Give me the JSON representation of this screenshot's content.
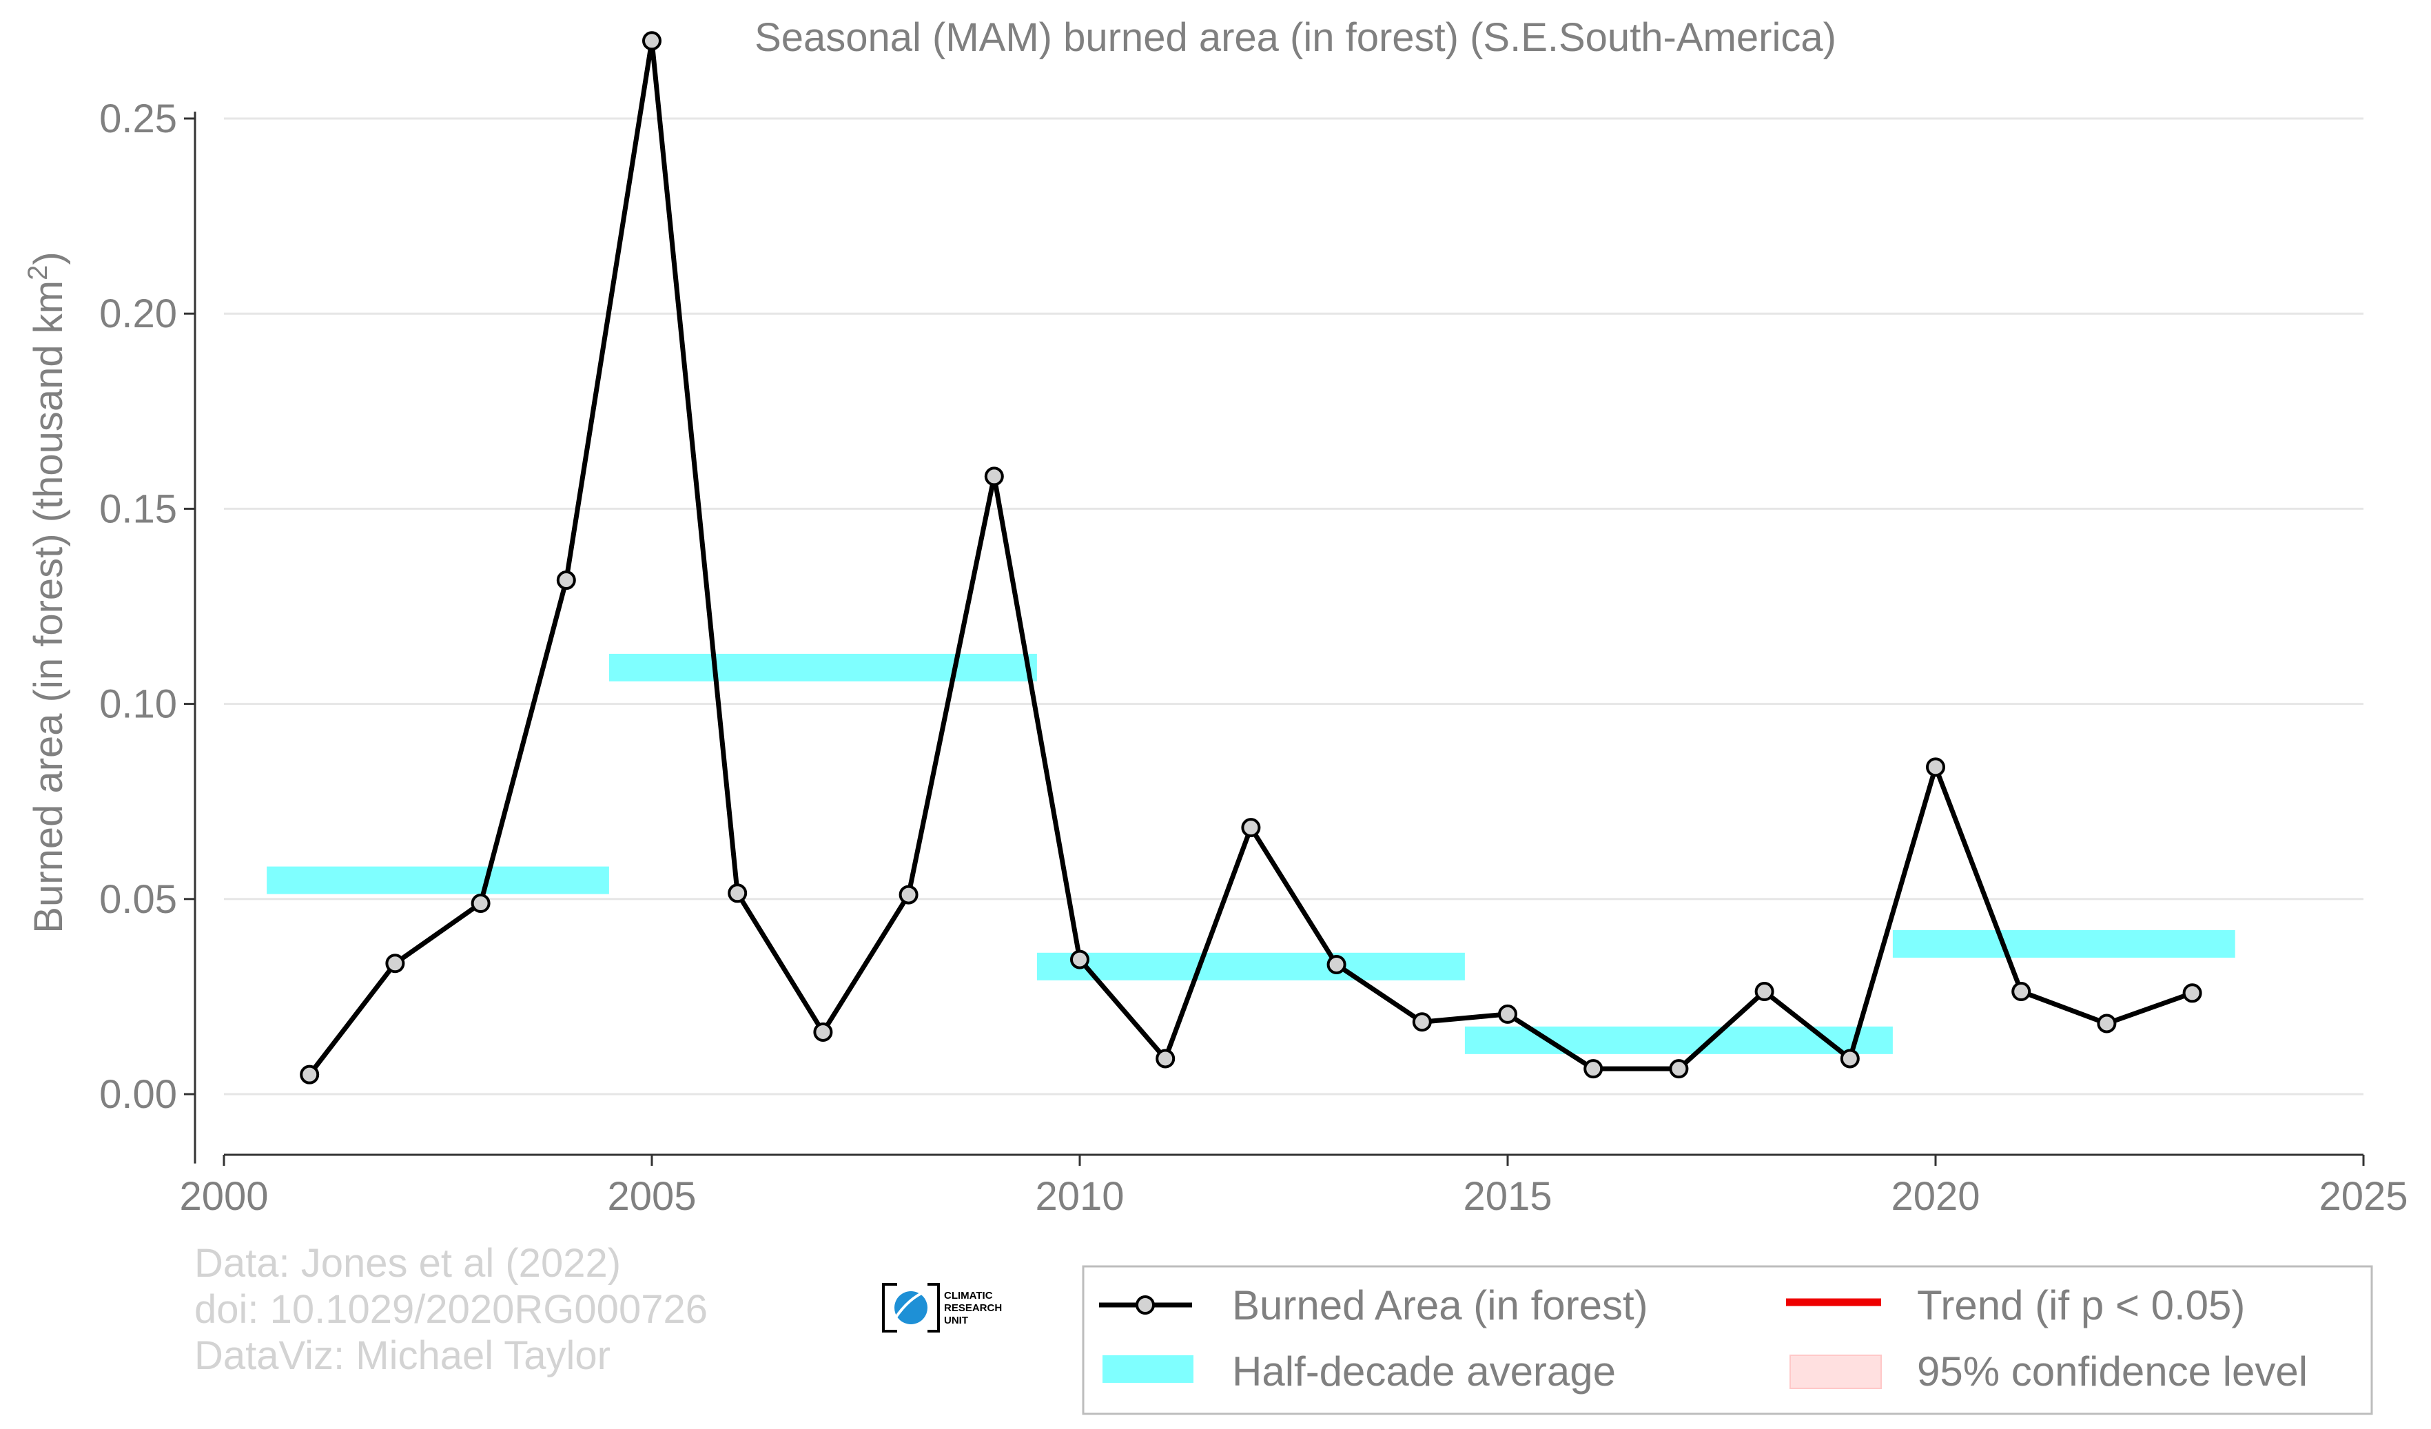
{
  "chart_data": {
    "type": "line",
    "title": "Seasonal (MAM) burned area (in forest) (S.E.South-America)",
    "ylabel_main": "Burned area (in forest) (thousand km",
    "ylabel_sup": "2",
    "ylabel_tail": ")",
    "xlim": [
      2000,
      2025
    ],
    "ylim": [
      -0.016,
      0.27
    ],
    "x_ticks": [
      2000,
      2005,
      2010,
      2015,
      2020,
      2025
    ],
    "x_tick_labels": [
      "2000",
      "2005",
      "2010",
      "2015",
      "2020",
      "2025"
    ],
    "y_ticks": [
      0,
      0.05,
      0.1,
      0.15,
      0.2,
      0.25
    ],
    "y_tick_labels": [
      "0.00",
      "0.05",
      "0.10",
      "0.15",
      "0.20",
      "0.25"
    ],
    "grid": "horizontal",
    "series": [
      {
        "name": "Burned Area (in forest)",
        "color": "#000000",
        "marker_fill": "#d3d3d3",
        "x": [
          2001,
          2002,
          2003,
          2004,
          2005,
          2006,
          2007,
          2008,
          2009,
          2010,
          2011,
          2012,
          2013,
          2014,
          2015,
          2016,
          2017,
          2018,
          2019,
          2020,
          2021,
          2022,
          2023
        ],
        "values": [
          0.005,
          0.0335,
          0.0489,
          0.1317,
          0.2699,
          0.0515,
          0.0159,
          0.0511,
          0.1583,
          0.0345,
          0.0091,
          0.0683,
          0.0332,
          0.0185,
          0.0205,
          0.0065,
          0.0065,
          0.0263,
          0.0091,
          0.0838,
          0.0263,
          0.0181,
          0.0259
        ]
      }
    ],
    "half_decade_average": {
      "name": "Half-decade average",
      "color": "#7fffff",
      "segments": [
        {
          "x_start": 2000.5,
          "x_end": 2004.5,
          "value": 0.0548
        },
        {
          "x_start": 2004.5,
          "x_end": 2009.5,
          "value": 0.1093
        },
        {
          "x_start": 2009.5,
          "x_end": 2014.5,
          "value": 0.0327
        },
        {
          "x_start": 2014.5,
          "x_end": 2019.5,
          "value": 0.0138
        },
        {
          "x_start": 2019.5,
          "x_end": 2023.5,
          "value": 0.0385
        }
      ]
    },
    "legend": {
      "placement": "bottom-right",
      "items": [
        {
          "label": "Burned Area (in forest)",
          "kind": "line-marker",
          "color": "#000000"
        },
        {
          "label": "Trend (if p < 0.05)",
          "kind": "line",
          "color": "#ee0000"
        },
        {
          "label": "Half-decade average",
          "kind": "band",
          "color": "#7fffff"
        },
        {
          "label": "95% confidence level",
          "kind": "band",
          "color": "#ffe0e0"
        }
      ]
    },
    "credits": [
      "Data: Jones et al (2022)",
      "doi: 10.1029/2020RG000726",
      "DataViz: Michael Taylor"
    ],
    "logo_text": [
      "CLIMATIC",
      "RESEARCH",
      "UNIT"
    ]
  }
}
